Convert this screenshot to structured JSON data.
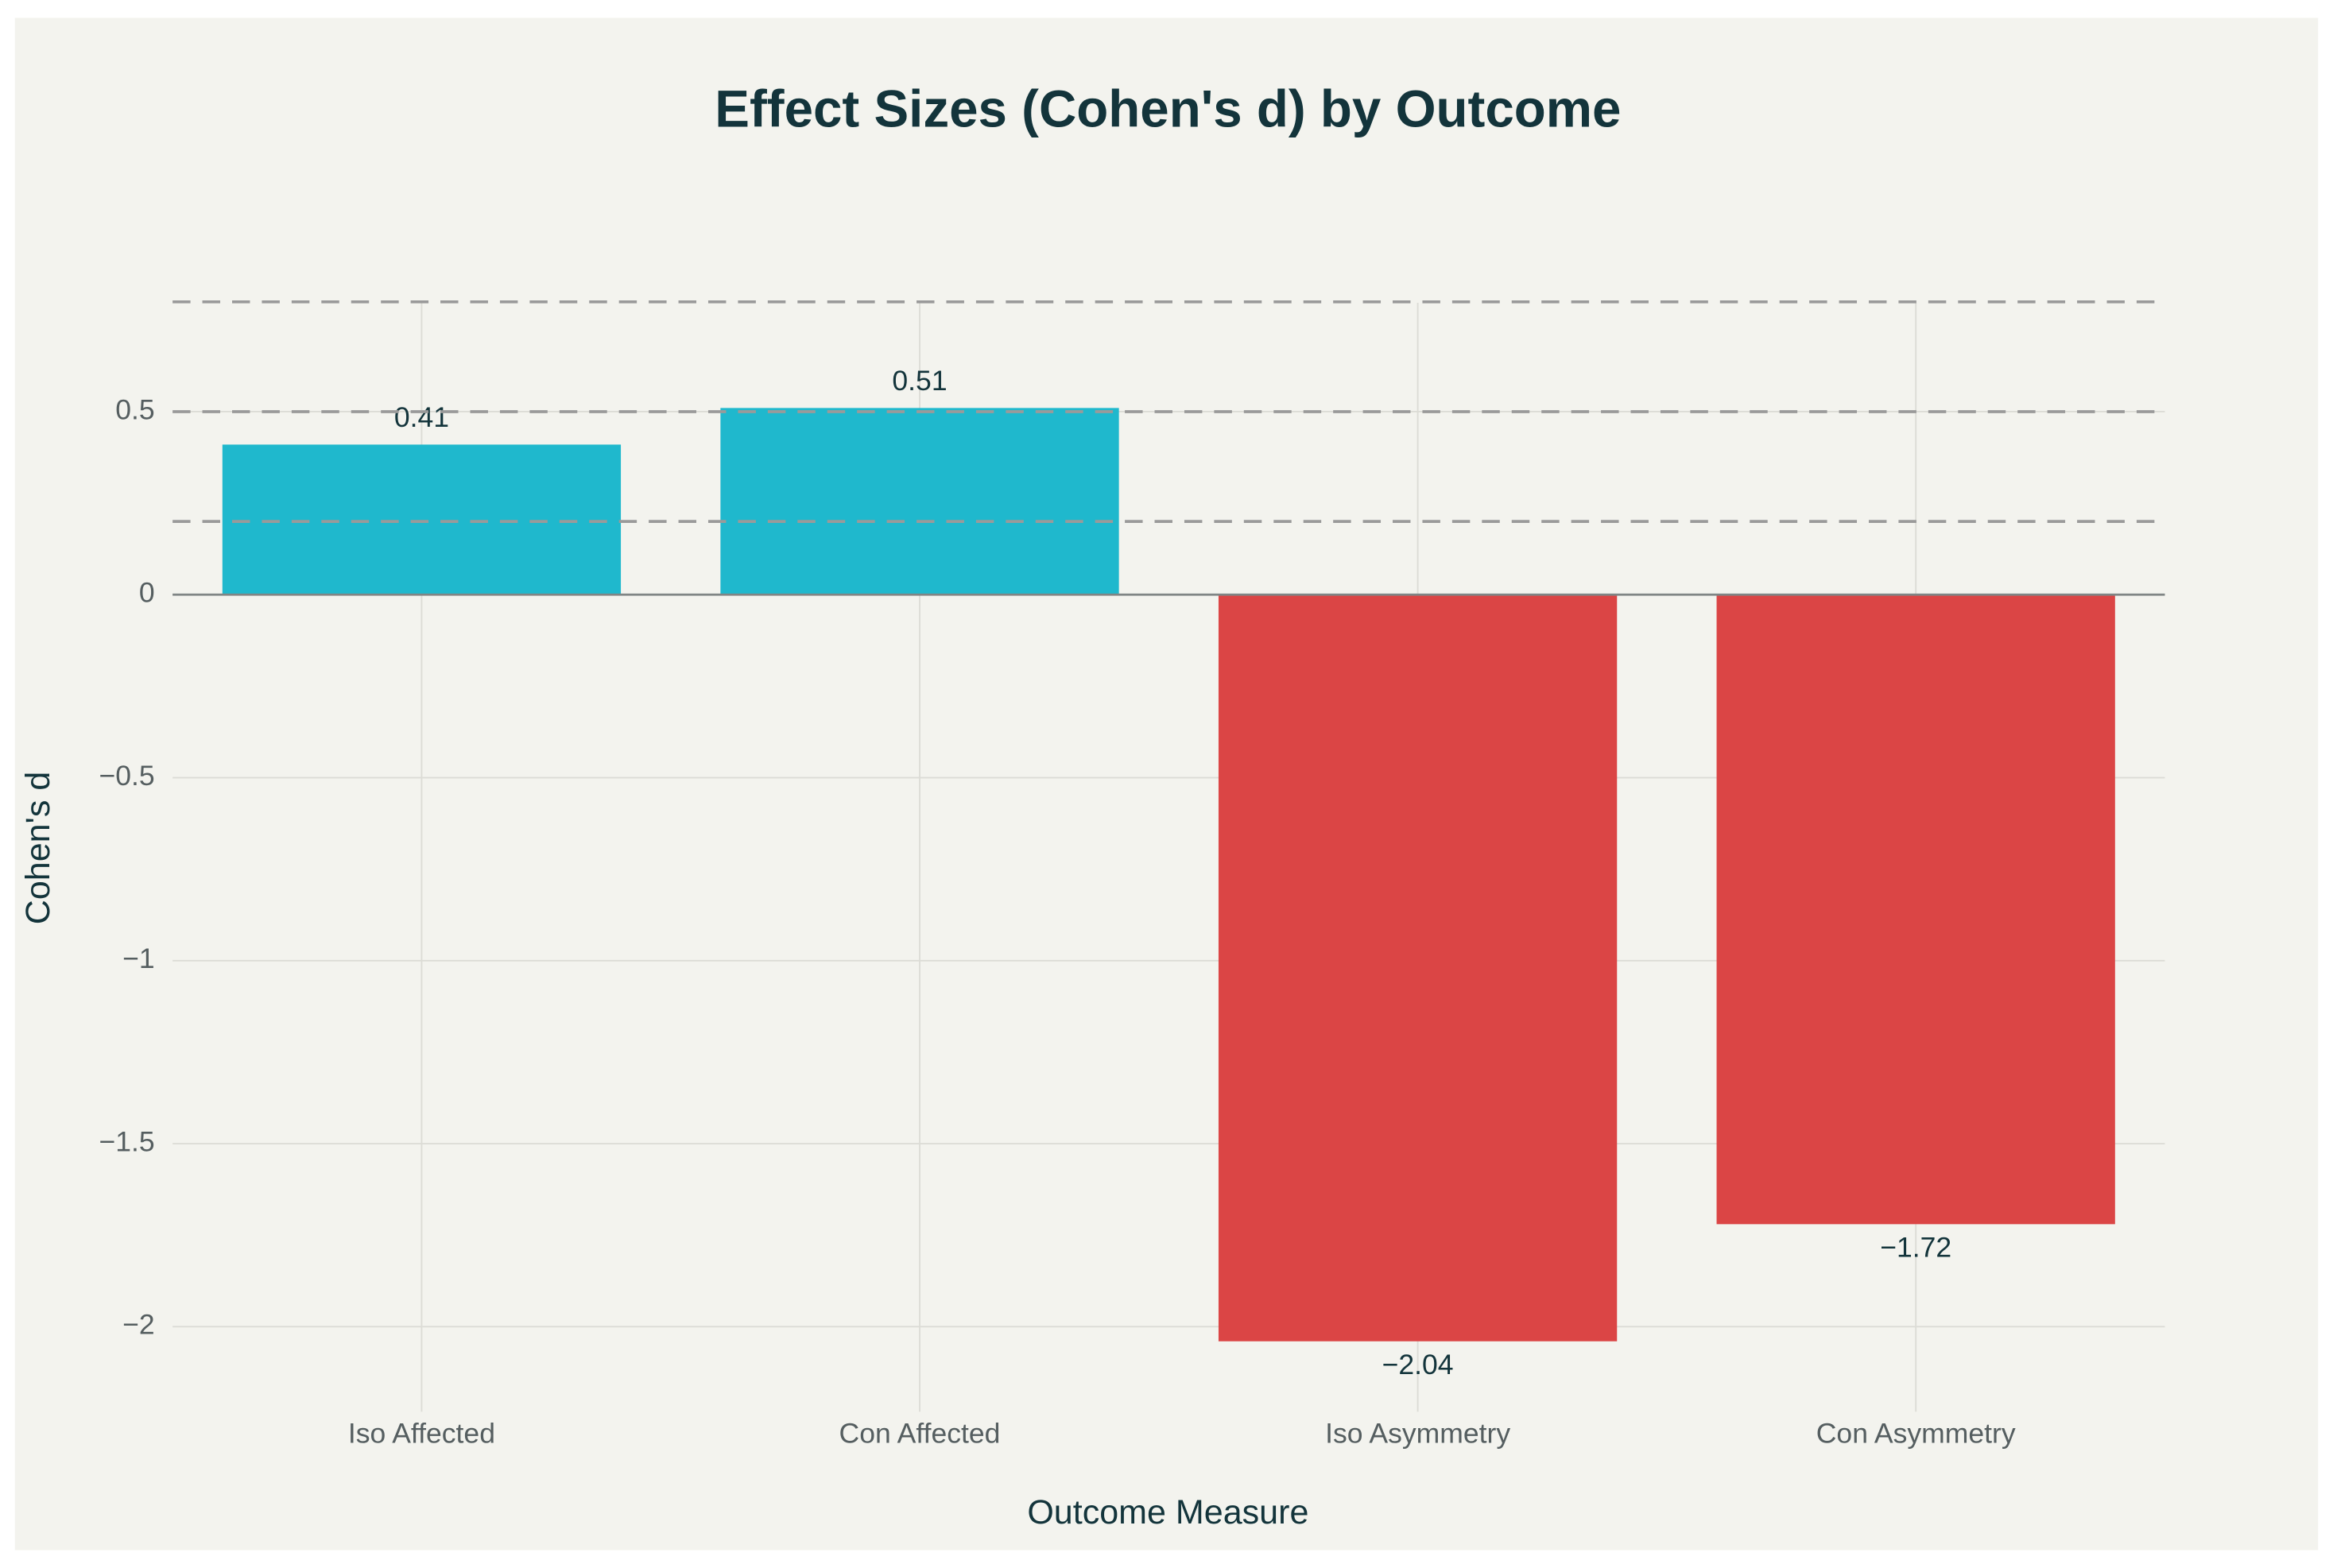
{
  "chart_data": {
    "type": "bar",
    "title": "Effect Sizes (Cohen's d) by Outcome",
    "x_label": "Outcome Measure",
    "y_label": "Cohen's d",
    "categories": [
      "Iso Affected",
      "Con Affected",
      "Iso Asymmetry",
      "Con Asymmetry"
    ],
    "values": [
      0.41,
      0.51,
      -2.04,
      -1.72
    ],
    "value_labels": [
      "0.41",
      "0.51",
      "−2.04",
      "−1.72"
    ],
    "colors": [
      "#1fb8cd",
      "#1fb8cd",
      "#db4545",
      "#db4545"
    ],
    "reference_lines": [
      0.2,
      0.5,
      0.8
    ],
    "ylim": [
      -2.2,
      0.83
    ],
    "yticks": [
      {
        "value": -2,
        "label": "−2"
      },
      {
        "value": -1.5,
        "label": "−1.5"
      },
      {
        "value": -1,
        "label": "−1"
      },
      {
        "value": -0.5,
        "label": "−0.5"
      },
      0,
      0.5
    ],
    "grid": true
  }
}
